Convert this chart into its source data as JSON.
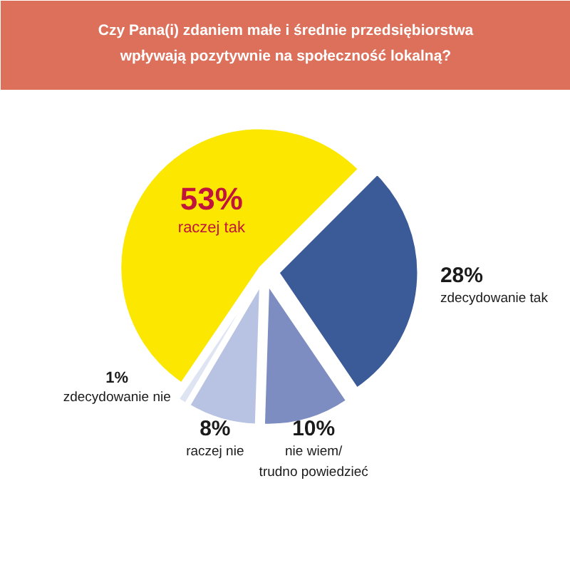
{
  "chart_data": {
    "type": "pie",
    "title": "Czy Pana(i) zdaniem małe i średnie przedsiębiorstwa\nwpływają pozytywnie na społeczność lokalną?",
    "categories": [
      "zdecydowanie tak",
      "nie wiem/\ntrudno powiedzieć",
      "raczej nie",
      "zdecydowanie nie",
      "raczej tak"
    ],
    "values": [
      28,
      10,
      8,
      1,
      53
    ],
    "colors": [
      "#3b5a98",
      "#7d8dc2",
      "#b8c2e2",
      "#dfe4f3",
      "#fbe700"
    ],
    "value_labels": [
      "28%",
      "10%",
      "8%",
      "1%",
      "53%"
    ]
  }
}
